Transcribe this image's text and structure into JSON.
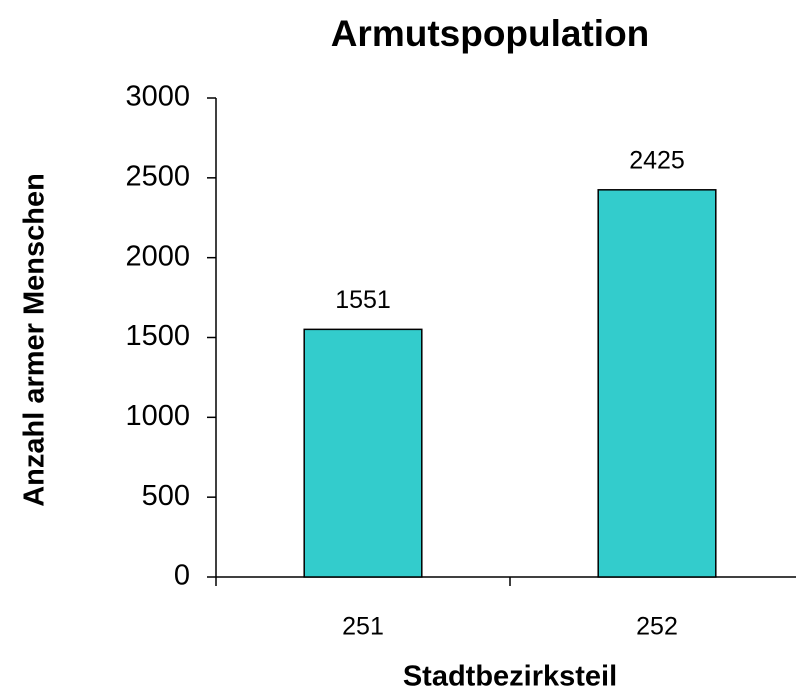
{
  "chart_data": {
    "type": "bar",
    "title": "Armutspopulation",
    "x_label": "Stadtbezirksteil",
    "y_label": "Anzahl armer Menschen",
    "categories": [
      "251",
      "252"
    ],
    "values": [
      1551,
      2425
    ],
    "color": "#33cccc",
    "ylim": [
      0,
      3000
    ],
    "yticks": [
      0,
      500,
      1000,
      1500,
      2000,
      2500,
      3000
    ],
    "grid": false
  }
}
